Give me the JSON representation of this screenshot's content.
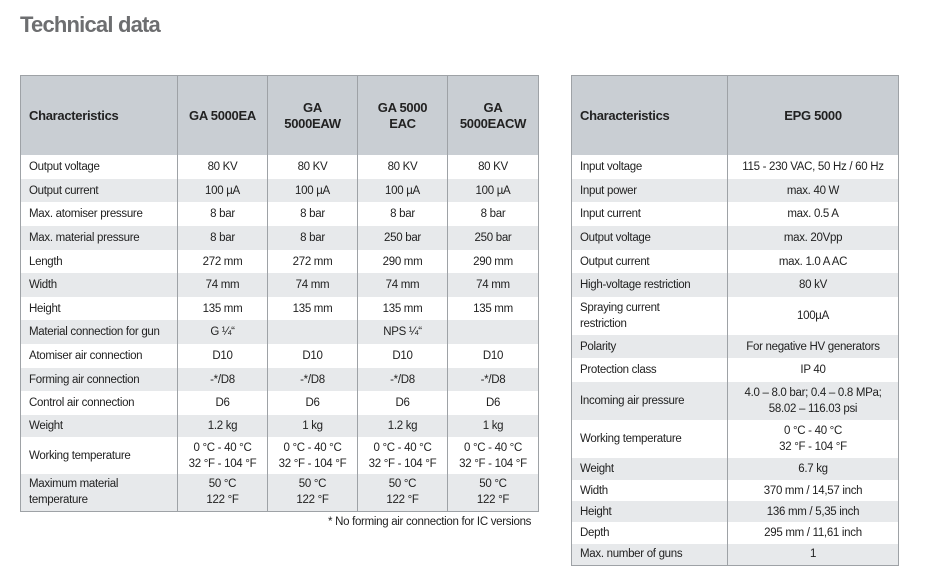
{
  "title": "Technical data",
  "table1": {
    "header": [
      "Characteristics",
      "GA 5000EA",
      "GA 5000EAW",
      "GA 5000 EAC",
      "GA 5000EACW"
    ],
    "rows": [
      [
        "Output voltage",
        "80 KV",
        "80 KV",
        "80 KV",
        "80 KV"
      ],
      [
        "Output current",
        "100 µA",
        "100 µA",
        "100 µA",
        "100 µA"
      ],
      [
        "Max. atomiser pressure",
        "8 bar",
        "8 bar",
        "8 bar",
        "8 bar"
      ],
      [
        "Max. material pressure",
        "8 bar",
        "8 bar",
        "250 bar",
        "250 bar"
      ],
      [
        "Length",
        "272 mm",
        "272 mm",
        "290 mm",
        "290 mm"
      ],
      [
        "Width",
        "74 mm",
        "74 mm",
        "74 mm",
        "74 mm"
      ],
      [
        "Height",
        "135 mm",
        "135 mm",
        "135 mm",
        "135 mm"
      ],
      [
        "Material connection for gun",
        "G ¼“",
        null,
        "NPS ¼“",
        null
      ],
      [
        "Atomiser air connection",
        "D10",
        "D10",
        "D10",
        "D10"
      ],
      [
        "Forming air connection",
        "-*/D8",
        "-*/D8",
        "-*/D8",
        "-*/D8"
      ],
      [
        "Control air connection",
        "D6",
        "D6",
        "D6",
        "D6"
      ],
      [
        "Weight",
        "1.2 kg",
        "1 kg",
        "1.2 kg",
        "1 kg"
      ],
      [
        "Working temperature",
        "0 °C - 40 °C\n32 °F - 104 °F",
        "0 °C - 40 °C\n32 °F - 104 °F",
        "0 °C - 40 °C\n32 °F - 104 °F",
        "0 °C - 40 °C\n32 °F - 104 °F"
      ],
      [
        "Maximum material\ntemperature",
        "50 °C\n122 °F",
        "50 °C\n122 °F",
        "50 °C\n122 °F",
        "50 °C\n122 °F"
      ]
    ]
  },
  "footnote": "* No forming air connection for IC versions",
  "table2": {
    "header": [
      "Characteristics",
      "EPG 5000"
    ],
    "rows": [
      [
        "Input voltage",
        "115 - 230 VAC, 50 Hz / 60 Hz"
      ],
      [
        "Input power",
        "max. 40 W"
      ],
      [
        "Input current",
        "max. 0.5 A"
      ],
      [
        "Output voltage",
        "max. 20Vpp"
      ],
      [
        "Output current",
        "max. 1.0 A AC"
      ],
      [
        "High-voltage restriction",
        "80 kV"
      ],
      [
        "Spraying current\nrestriction",
        "100µA"
      ],
      [
        "Polarity",
        "For negative HV generators"
      ],
      [
        "Protection class",
        "IP 40"
      ],
      [
        "Incoming air pressure",
        "4.0 – 8.0 bar; 0.4 – 0.8 MPa;\n58.02 – 116.03 psi"
      ],
      [
        "Working temperature",
        "0 °C - 40 °C\n32 °F - 104 °F"
      ],
      [
        "Weight",
        "6.7 kg"
      ],
      [
        "Width",
        "370 mm / 14,57 inch"
      ],
      [
        "Height",
        "136 mm / 5,35 inch"
      ],
      [
        "Depth",
        "295 mm / 11,61 inch"
      ],
      [
        "Max. number of guns",
        "1"
      ]
    ]
  }
}
